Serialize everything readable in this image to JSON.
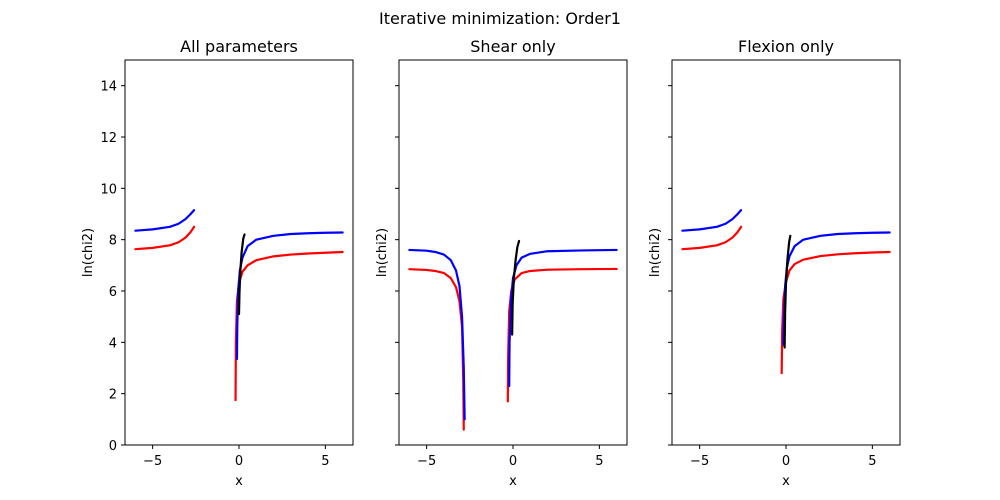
{
  "chart_data": {
    "suptitle": "Iterative minimization: Order1",
    "panels": [
      {
        "type": "line",
        "title": "All parameters",
        "xlabel": "x",
        "ylabel": "ln(chi2)",
        "xlim": [
          -6.6,
          6.6
        ],
        "ylim": [
          0,
          15
        ],
        "xticks": [
          -5,
          0,
          5
        ],
        "yticks": [
          0,
          2,
          4,
          6,
          8,
          10,
          12,
          14
        ],
        "show_y_ticklabels": true,
        "series": [
          {
            "color": "#ff0000",
            "points": [
              [
                -6.0,
                7.63
              ],
              [
                -5.0,
                7.68
              ],
              [
                -4.0,
                7.78
              ],
              [
                -3.5,
                7.9
              ],
              [
                -3.1,
                8.08
              ],
              [
                -2.8,
                8.3
              ],
              [
                -2.6,
                8.5
              ]
            ]
          },
          {
            "color": "#ff0000",
            "points": [
              [
                -0.2,
                1.75
              ],
              [
                -0.18,
                4.0
              ],
              [
                -0.12,
                5.6
              ],
              [
                0.0,
                6.3
              ],
              [
                0.2,
                6.75
              ],
              [
                0.5,
                7.0
              ],
              [
                1.0,
                7.2
              ],
              [
                2.0,
                7.35
              ],
              [
                3.0,
                7.42
              ],
              [
                4.0,
                7.46
              ],
              [
                5.0,
                7.49
              ],
              [
                6.0,
                7.52
              ]
            ]
          },
          {
            "color": "#0000ff",
            "points": [
              [
                -6.0,
                8.35
              ],
              [
                -5.0,
                8.4
              ],
              [
                -4.0,
                8.5
              ],
              [
                -3.5,
                8.62
              ],
              [
                -3.1,
                8.8
              ],
              [
                -2.8,
                9.0
              ],
              [
                -2.6,
                9.15
              ]
            ]
          },
          {
            "color": "#0000ff",
            "points": [
              [
                -0.12,
                3.35
              ],
              [
                -0.1,
                4.6
              ],
              [
                -0.05,
                6.0
              ],
              [
                0.05,
                6.8
              ],
              [
                0.2,
                7.3
              ],
              [
                0.5,
                7.75
              ],
              [
                1.0,
                8.0
              ],
              [
                2.0,
                8.15
              ],
              [
                3.0,
                8.22
              ],
              [
                4.0,
                8.25
              ],
              [
                5.0,
                8.27
              ],
              [
                6.0,
                8.28
              ]
            ]
          },
          {
            "color": "#000000",
            "points": [
              [
                0.0,
                5.1
              ],
              [
                0.03,
                6.0
              ],
              [
                0.08,
                6.8
              ],
              [
                0.15,
                7.5
              ],
              [
                0.25,
                8.05
              ],
              [
                0.32,
                8.2
              ]
            ]
          }
        ]
      },
      {
        "type": "line",
        "title": "Shear only",
        "xlabel": "x",
        "ylabel": "ln(chi2)",
        "xlim": [
          -6.6,
          6.6
        ],
        "ylim": [
          0,
          15
        ],
        "xticks": [
          -5,
          0,
          5
        ],
        "yticks": [
          0,
          2,
          4,
          6,
          8,
          10,
          12,
          14
        ],
        "show_y_ticklabels": false,
        "series": [
          {
            "color": "#ff0000",
            "points": [
              [
                -6.0,
                6.85
              ],
              [
                -5.0,
                6.82
              ],
              [
                -4.5,
                6.78
              ],
              [
                -4.0,
                6.7
              ],
              [
                -3.6,
                6.5
              ],
              [
                -3.3,
                6.15
              ],
              [
                -3.1,
                5.6
              ],
              [
                -2.95,
                4.6
              ],
              [
                -2.88,
                2.5
              ],
              [
                -2.85,
                0.6
              ]
            ]
          },
          {
            "color": "#ff0000",
            "points": [
              [
                -0.3,
                1.7
              ],
              [
                -0.28,
                3.5
              ],
              [
                -0.22,
                5.2
              ],
              [
                -0.1,
                6.0
              ],
              [
                0.1,
                6.45
              ],
              [
                0.5,
                6.7
              ],
              [
                1.0,
                6.78
              ],
              [
                2.0,
                6.83
              ],
              [
                4.0,
                6.85
              ],
              [
                6.0,
                6.86
              ]
            ]
          },
          {
            "color": "#0000ff",
            "points": [
              [
                -6.0,
                7.6
              ],
              [
                -5.0,
                7.57
              ],
              [
                -4.5,
                7.52
              ],
              [
                -4.0,
                7.42
              ],
              [
                -3.6,
                7.2
              ],
              [
                -3.3,
                6.8
              ],
              [
                -3.1,
                6.2
              ],
              [
                -2.95,
                5.0
              ],
              [
                -2.85,
                3.0
              ],
              [
                -2.8,
                1.0
              ]
            ]
          },
          {
            "color": "#0000ff",
            "points": [
              [
                -0.22,
                2.3
              ],
              [
                -0.2,
                4.0
              ],
              [
                -0.12,
                5.6
              ],
              [
                0.0,
                6.5
              ],
              [
                0.2,
                7.0
              ],
              [
                0.5,
                7.3
              ],
              [
                1.0,
                7.45
              ],
              [
                2.0,
                7.55
              ],
              [
                4.0,
                7.58
              ],
              [
                6.0,
                7.6
              ]
            ]
          },
          {
            "color": "#000000",
            "points": [
              [
                -0.05,
                4.3
              ],
              [
                -0.02,
                5.5
              ],
              [
                0.05,
                6.5
              ],
              [
                0.15,
                7.2
              ],
              [
                0.25,
                7.7
              ],
              [
                0.35,
                7.95
              ]
            ]
          }
        ]
      },
      {
        "type": "line",
        "title": "Flexion only",
        "xlabel": "x",
        "ylabel": "ln(chi2)",
        "xlim": [
          -6.6,
          6.6
        ],
        "ylim": [
          0,
          15
        ],
        "xticks": [
          -5,
          0,
          5
        ],
        "yticks": [
          0,
          2,
          4,
          6,
          8,
          10,
          12,
          14
        ],
        "show_y_ticklabels": false,
        "series": [
          {
            "color": "#ff0000",
            "points": [
              [
                -6.0,
                7.63
              ],
              [
                -5.0,
                7.68
              ],
              [
                -4.0,
                7.78
              ],
              [
                -3.5,
                7.9
              ],
              [
                -3.1,
                8.08
              ],
              [
                -2.8,
                8.3
              ],
              [
                -2.6,
                8.5
              ]
            ]
          },
          {
            "color": "#ff0000",
            "points": [
              [
                -0.25,
                2.8
              ],
              [
                -0.22,
                4.5
              ],
              [
                -0.15,
                5.7
              ],
              [
                0.0,
                6.35
              ],
              [
                0.2,
                6.8
              ],
              [
                0.5,
                7.05
              ],
              [
                1.0,
                7.22
              ],
              [
                2.0,
                7.36
              ],
              [
                3.0,
                7.43
              ],
              [
                4.0,
                7.47
              ],
              [
                5.0,
                7.5
              ],
              [
                6.0,
                7.52
              ]
            ]
          },
          {
            "color": "#0000ff",
            "points": [
              [
                -6.0,
                8.35
              ],
              [
                -5.0,
                8.4
              ],
              [
                -4.0,
                8.5
              ],
              [
                -3.5,
                8.62
              ],
              [
                -3.1,
                8.8
              ],
              [
                -2.8,
                9.0
              ],
              [
                -2.6,
                9.15
              ]
            ]
          },
          {
            "color": "#0000ff",
            "points": [
              [
                -0.15,
                3.9
              ],
              [
                -0.12,
                5.0
              ],
              [
                -0.05,
                6.2
              ],
              [
                0.05,
                6.9
              ],
              [
                0.2,
                7.35
              ],
              [
                0.5,
                7.75
              ],
              [
                1.0,
                8.0
              ],
              [
                2.0,
                8.15
              ],
              [
                3.0,
                8.22
              ],
              [
                4.0,
                8.25
              ],
              [
                5.0,
                8.27
              ],
              [
                6.0,
                8.28
              ]
            ]
          },
          {
            "color": "#000000",
            "points": [
              [
                -0.08,
                3.8
              ],
              [
                -0.05,
                5.2
              ],
              [
                0.0,
                6.3
              ],
              [
                0.08,
                7.2
              ],
              [
                0.18,
                7.9
              ],
              [
                0.25,
                8.15
              ]
            ]
          }
        ]
      }
    ]
  }
}
